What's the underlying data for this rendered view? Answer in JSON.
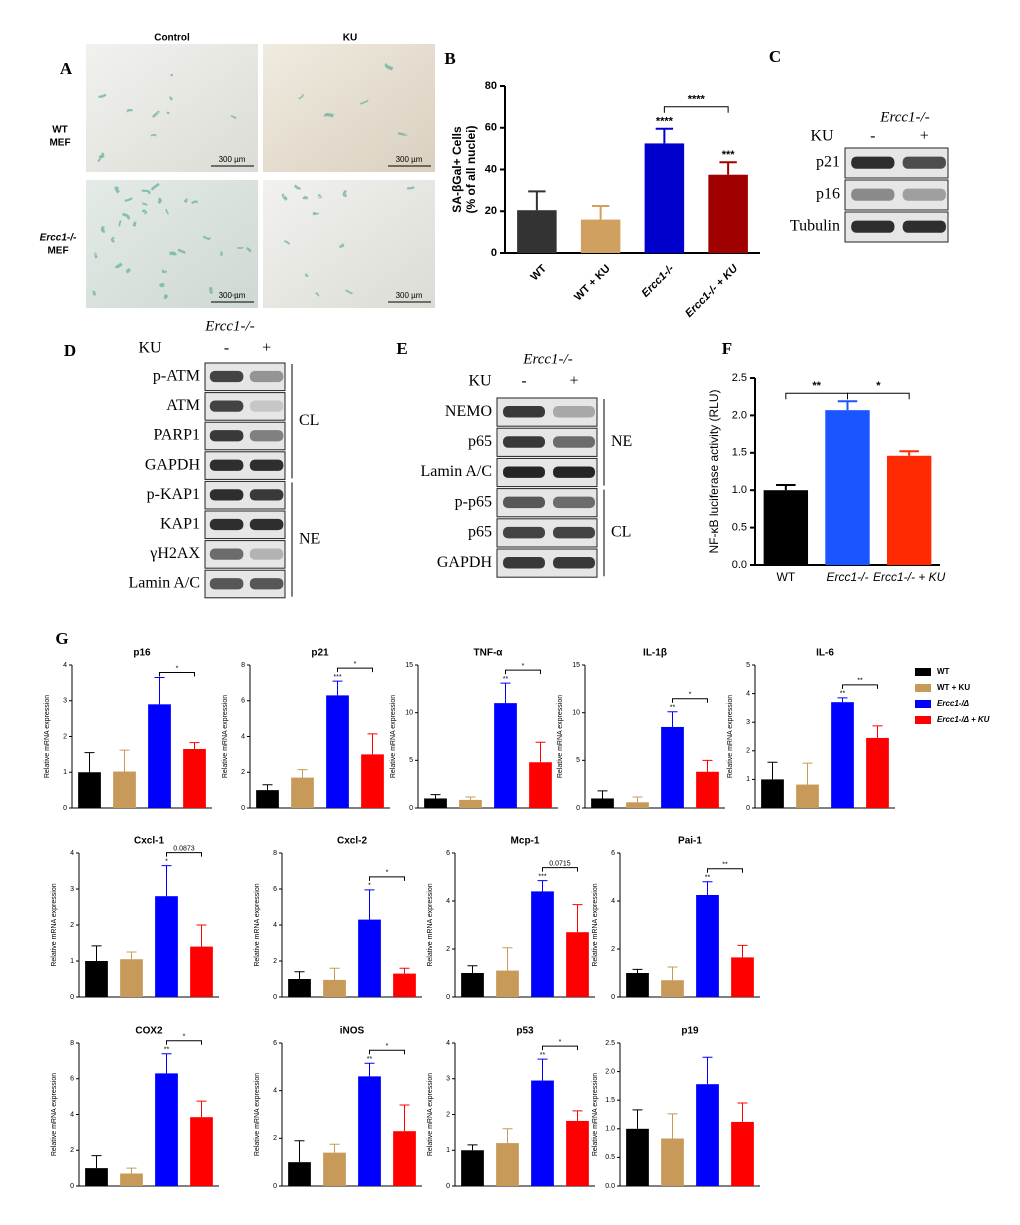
{
  "panel_a": {
    "label": "A",
    "columns": [
      "Control",
      "KU"
    ],
    "rows": [
      {
        "lines": [
          "WT",
          "MEF"
        ]
      },
      {
        "lines": [
          "Ercc1-/-",
          "MEF"
        ]
      }
    ],
    "scale_bar": "300 µm"
  },
  "panel_c": {
    "label": "C",
    "genotype": "Ercc1-/-",
    "treatment": "KU",
    "lanes": [
      "-",
      "+"
    ],
    "groups": [
      {
        "rows": [
          "p21",
          "p16",
          "Tubulin"
        ]
      }
    ]
  },
  "panel_d": {
    "label": "D",
    "genotype": "Ercc1-/-",
    "treatment": "KU",
    "lanes": [
      "-",
      "+"
    ],
    "groups": [
      {
        "name": "CL",
        "rows": [
          "p-ATM",
          "ATM",
          "PARP1",
          "GAPDH"
        ]
      },
      {
        "name": "NE",
        "rows": [
          "p-KAP1",
          "KAP1",
          "γH2AX",
          "Lamin A/C"
        ]
      }
    ]
  },
  "panel_e": {
    "label": "E",
    "genotype": "Ercc1-/-",
    "treatment": "KU",
    "lanes": [
      "-",
      "+"
    ],
    "groups": [
      {
        "name": "NE",
        "rows": [
          "NEMO",
          "p65",
          "Lamin A/C"
        ]
      },
      {
        "name": "CL",
        "rows": [
          "p-p65",
          "p65",
          "GAPDH"
        ]
      }
    ]
  },
  "panel_g": {
    "label": "G",
    "legend": [
      {
        "name": "WT",
        "color": "#000000"
      },
      {
        "name": "WT + KU",
        "color": "#c89a5a"
      },
      {
        "name": "Ercc1-/Δ",
        "color": "#0000ff"
      },
      {
        "name": "Ercc1-/Δ + KU",
        "color": "#ff0000"
      }
    ]
  },
  "chart_data": [
    {
      "panel": "B",
      "type": "bar",
      "ylabel": [
        "SA-βGal+ Cells",
        "(% of all nuclei)"
      ],
      "categories": [
        "WT",
        "WT + KU",
        "Ercc1-/-",
        "Ercc1-/- + KU"
      ],
      "values": [
        20.5,
        16,
        52.5,
        37.5
      ],
      "errors": [
        9,
        6.5,
        7,
        6
      ],
      "colors": [
        "#333333",
        "#d0a060",
        "#0000cc",
        "#a00000"
      ],
      "ylim": [
        0,
        80
      ],
      "yticks": [
        0,
        20,
        40,
        60,
        80
      ],
      "star_labels": [
        null,
        null,
        "****",
        "***"
      ],
      "brackets": [
        {
          "label": "****",
          "between": [
            "Ercc1-/-",
            "Ercc1-/- + KU"
          ]
        }
      ]
    },
    {
      "panel": "F",
      "type": "bar",
      "ylabel": [
        "NF-κB luciferase activity (RLU)"
      ],
      "categories": [
        "WT",
        "Ercc1-/-",
        "Ercc1-/- + KU"
      ],
      "values": [
        1.0,
        2.07,
        1.46
      ],
      "errors": [
        0.07,
        0.12,
        0.06
      ],
      "colors": [
        "#000000",
        "#1a55ff",
        "#ff2a00"
      ],
      "ylim": [
        0,
        2.5
      ],
      "yticks": [
        {
          "value": 0,
          "label": "0.0"
        },
        0.5,
        {
          "value": 1,
          "label": "1.0"
        },
        1.5,
        {
          "value": 2,
          "label": "2.0"
        },
        2.5
      ],
      "brackets": [
        {
          "label": "**",
          "between": [
            "WT",
            "Ercc1-/-"
          ]
        },
        {
          "label": "*",
          "between": [
            "Ercc1-/-",
            "Ercc1-/- + KU"
          ]
        }
      ]
    },
    {
      "type": "bar",
      "title": "p16",
      "ylabel": [
        "Relative mRNA expression"
      ],
      "values": [
        1.0,
        1.02,
        2.9,
        1.65
      ],
      "errors": [
        0.55,
        0.6,
        0.75,
        0.18
      ],
      "ylim": [
        0,
        4
      ],
      "yticks": [
        0,
        1,
        2,
        3,
        4
      ],
      "brackets": [
        {
          "label": "*"
        }
      ]
    },
    {
      "type": "bar",
      "title": "p21",
      "ylabel": [
        "Relative mRNA expression"
      ],
      "values": [
        1.0,
        1.7,
        6.3,
        3.0
      ],
      "errors": [
        0.3,
        0.45,
        0.8,
        1.15
      ],
      "ylim": [
        0,
        8
      ],
      "yticks": [
        0,
        2,
        4,
        6,
        8
      ],
      "star_labels": [
        null,
        null,
        "***",
        null
      ],
      "brackets": [
        {
          "label": "*"
        }
      ]
    },
    {
      "type": "bar",
      "title": "TNF-α",
      "ylabel": [
        "Relative mRNA expression"
      ],
      "values": [
        1.0,
        0.85,
        11.0,
        4.8
      ],
      "errors": [
        0.4,
        0.3,
        2.1,
        2.1
      ],
      "ylim": [
        0,
        15
      ],
      "yticks": [
        0,
        5,
        10,
        15
      ],
      "star_labels": [
        null,
        null,
        "**",
        null
      ],
      "brackets": [
        {
          "label": "*"
        }
      ]
    },
    {
      "type": "bar",
      "title": "IL-1β",
      "ylabel": [
        "Relative mRNA expression"
      ],
      "values": [
        1.0,
        0.6,
        8.5,
        3.8
      ],
      "errors": [
        0.8,
        0.55,
        1.6,
        1.2
      ],
      "ylim": [
        0,
        15
      ],
      "yticks": [
        0,
        5,
        10,
        15
      ],
      "star_labels": [
        null,
        null,
        "**",
        null
      ],
      "brackets": [
        {
          "label": "*"
        }
      ]
    },
    {
      "type": "bar",
      "title": "IL-6",
      "ylabel": [
        "Relative mRNA expression"
      ],
      "values": [
        1.0,
        0.82,
        3.7,
        2.45
      ],
      "errors": [
        0.6,
        0.75,
        0.15,
        0.42
      ],
      "ylim": [
        0,
        5
      ],
      "yticks": [
        0,
        1,
        2,
        3,
        4,
        5
      ],
      "star_labels": [
        null,
        null,
        "**",
        null
      ],
      "brackets": [
        {
          "label": "**"
        }
      ]
    },
    {
      "type": "bar",
      "title": "Cxcl-1",
      "ylabel": [
        "Relative mRNA expression"
      ],
      "values": [
        1.0,
        1.05,
        2.8,
        1.4
      ],
      "errors": [
        0.42,
        0.2,
        0.85,
        0.6
      ],
      "ylim": [
        0,
        4
      ],
      "yticks": [
        0,
        1,
        2,
        3,
        4
      ],
      "star_labels": [
        null,
        null,
        "*",
        null
      ],
      "brackets": [
        {
          "label": "0.0873"
        }
      ]
    },
    {
      "type": "bar",
      "title": "Cxcl-2",
      "ylabel": [
        "Relative mRNA expression"
      ],
      "values": [
        1.0,
        0.95,
        4.3,
        1.3
      ],
      "errors": [
        0.4,
        0.65,
        1.65,
        0.3
      ],
      "ylim": [
        0,
        8
      ],
      "yticks": [
        0,
        2,
        4,
        6,
        8
      ],
      "star_labels": [
        null,
        null,
        "*",
        null
      ],
      "brackets": [
        {
          "label": "*"
        }
      ]
    },
    {
      "type": "bar",
      "title": "Mcp-1",
      "ylabel": [
        "Relative mRNA expression"
      ],
      "values": [
        1.0,
        1.1,
        4.4,
        2.7
      ],
      "errors": [
        0.3,
        0.95,
        0.45,
        1.15
      ],
      "ylim": [
        0,
        6
      ],
      "yticks": [
        0,
        2,
        4,
        6
      ],
      "star_labels": [
        null,
        null,
        "***",
        null
      ],
      "brackets": [
        {
          "label": "0.0715"
        }
      ]
    },
    {
      "type": "bar",
      "title": "Pai-1",
      "ylabel": [
        "Relative mRNA expression"
      ],
      "values": [
        1.0,
        0.7,
        4.25,
        1.65
      ],
      "errors": [
        0.15,
        0.55,
        0.55,
        0.5
      ],
      "ylim": [
        0,
        6
      ],
      "yticks": [
        0,
        2,
        4,
        6
      ],
      "star_labels": [
        null,
        null,
        "**",
        null
      ],
      "brackets": [
        {
          "label": "**"
        }
      ]
    },
    {
      "type": "bar",
      "title": "COX2",
      "ylabel": [
        "Relative mRNA expression"
      ],
      "values": [
        1.0,
        0.7,
        6.3,
        3.85
      ],
      "errors": [
        0.7,
        0.3,
        1.1,
        0.9
      ],
      "ylim": [
        0,
        8
      ],
      "yticks": [
        0,
        2,
        4,
        6,
        8
      ],
      "star_labels": [
        null,
        null,
        "**",
        null
      ],
      "brackets": [
        {
          "label": "*"
        }
      ]
    },
    {
      "type": "bar",
      "title": "iNOS",
      "ylabel": [
        "Relative mRNA expression"
      ],
      "values": [
        1.0,
        1.4,
        4.6,
        2.3
      ],
      "errors": [
        0.9,
        0.35,
        0.55,
        1.1
      ],
      "ylim": [
        0,
        6
      ],
      "yticks": [
        0,
        2,
        4,
        6
      ],
      "star_labels": [
        null,
        null,
        "**",
        null
      ],
      "brackets": [
        {
          "label": "*"
        }
      ]
    },
    {
      "type": "bar",
      "title": "p53",
      "ylabel": [
        "Relative mRNA expression"
      ],
      "values": [
        1.0,
        1.2,
        2.95,
        1.82
      ],
      "errors": [
        0.15,
        0.4,
        0.6,
        0.28
      ],
      "ylim": [
        0,
        4
      ],
      "yticks": [
        0,
        1,
        2,
        3,
        4
      ],
      "star_labels": [
        null,
        null,
        "**",
        null
      ],
      "brackets": [
        {
          "label": "*"
        }
      ]
    },
    {
      "type": "bar",
      "title": "p19",
      "ylabel": [
        "Relative mRNA expression"
      ],
      "values": [
        1.0,
        0.83,
        1.78,
        1.12
      ],
      "errors": [
        0.33,
        0.43,
        0.47,
        0.33
      ],
      "ylim": [
        0,
        2.5
      ],
      "yticks": [
        {
          "value": 0,
          "label": "0.0"
        },
        0.5,
        {
          "value": 1,
          "label": "1.0"
        },
        1.5,
        {
          "value": 2,
          "label": "2.0"
        },
        2.5
      ]
    }
  ]
}
